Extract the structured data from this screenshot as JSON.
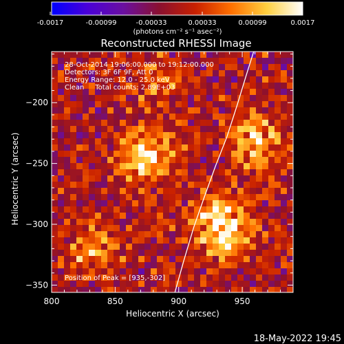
{
  "colorbar": {
    "ticks": [
      "-0.0017",
      "-0.00099",
      "-0.00033",
      "0.00033",
      "0.00099",
      "0.0017"
    ],
    "unit_label": "(photons cm⁻² s⁻¹ asec⁻²)",
    "range": [
      -0.0017,
      0.0017
    ],
    "stops": [
      "#0000ff",
      "#4a00d8",
      "#6a0fa0",
      "#8a1030",
      "#c82000",
      "#ff7000",
      "#ffd040",
      "#ffffff"
    ]
  },
  "info": {
    "line1": "28-Oct-2014 19:06:00.000 to 19:12:00.000",
    "line2": "Detectors: 3F 6F 9F, Att 0",
    "line3": "Energy Range: 12.0 - 25.0 keV",
    "line4": "Clean     Total counts: 2.89E+03",
    "peak": "Position of Peak = [935,-302]"
  },
  "footer_timestamp": "18-May-2022 19:45",
  "chart_data": {
    "type": "heatmap",
    "title": "Reconstructed RHESSI Image",
    "xlabel": "Heliocentric X (arcsec)",
    "ylabel": "Heliocentric Y (arcsec)",
    "xlim": [
      800,
      990
    ],
    "ylim": [
      -356,
      -158
    ],
    "xticks": [
      800,
      850,
      900,
      950
    ],
    "yticks": [
      -200,
      -250,
      -300,
      -350
    ],
    "limb_curve": [
      [
        897,
        -356
      ],
      [
        904,
        -330
      ],
      [
        912,
        -302
      ],
      [
        920,
        -278
      ],
      [
        929,
        -252
      ],
      [
        938,
        -228
      ],
      [
        946,
        -202
      ],
      [
        953,
        -178
      ],
      [
        959,
        -158
      ]
    ],
    "sources": [
      {
        "x": 875,
        "y": -245,
        "peak": 0.00135
      },
      {
        "x": 935,
        "y": -302,
        "peak": 0.0017
      },
      {
        "x": 960,
        "y": -232,
        "peak": 0.0012
      },
      {
        "x": 833,
        "y": -322,
        "peak": 0.0007
      },
      {
        "x": 882,
        "y": -182,
        "peak": 0.0006
      }
    ]
  }
}
